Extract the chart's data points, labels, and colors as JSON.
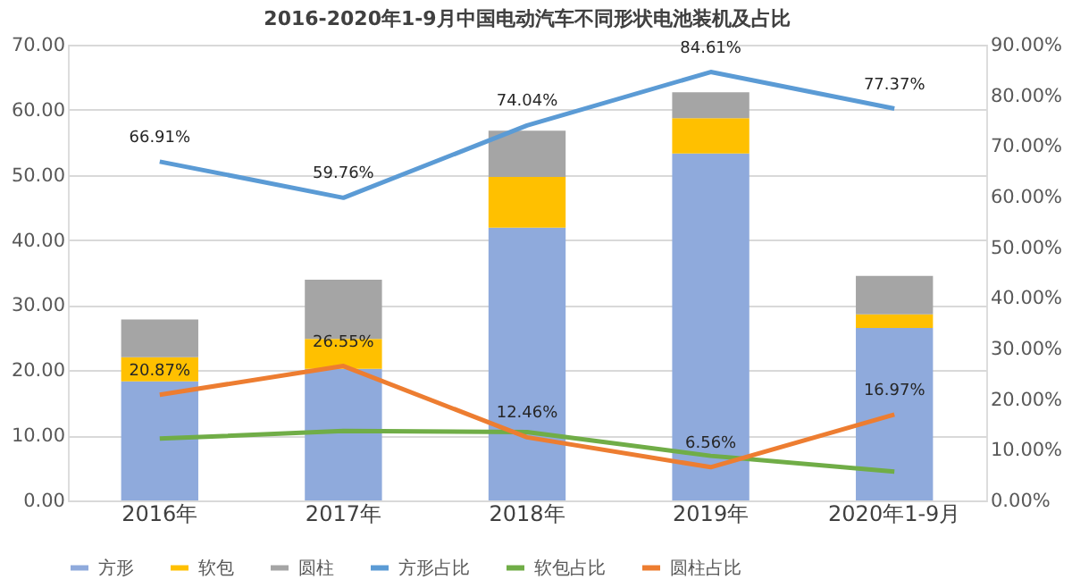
{
  "chart_data": {
    "type": "bar",
    "stacked": true,
    "title": "2016-2020年1-9月中国电动汽车不同形状电池装机及占比",
    "categories": [
      "2016年",
      "2017年",
      "2018年",
      "2019年",
      "2020年1-9月"
    ],
    "series": [
      {
        "name": "方形",
        "color": "#8faadc",
        "values": [
          18.3,
          20.2,
          41.9,
          53.3,
          26.5
        ]
      },
      {
        "name": "软包",
        "color": "#ffc000",
        "values": [
          3.7,
          4.6,
          7.8,
          5.4,
          2.1
        ]
      },
      {
        "name": "圆柱",
        "color": "#a5a5a5",
        "values": [
          5.8,
          9.1,
          7.1,
          4.0,
          5.9
        ]
      },
      {
        "name": "方形占比",
        "type": "line",
        "axis": "y2",
        "color": "#5b9bd5",
        "values": [
          66.91,
          59.76,
          74.04,
          84.61,
          77.37
        ],
        "value_labels": [
          "66.91%",
          "59.76%",
          "74.04%",
          "84.61%",
          "77.37%"
        ]
      },
      {
        "name": "软包占比",
        "type": "line",
        "axis": "y2",
        "color": "#70ad47",
        "values": [
          12.2,
          13.7,
          13.5,
          8.8,
          5.7
        ]
      },
      {
        "name": "圆柱占比",
        "type": "line",
        "axis": "y2",
        "color": "#ed7d31",
        "values": [
          20.87,
          26.55,
          12.46,
          6.56,
          16.97
        ],
        "value_labels": [
          "20.87%",
          "26.55%",
          "12.46%",
          "6.56%",
          "16.97%"
        ]
      }
    ],
    "ylim": [
      0,
      70
    ],
    "yticks": [
      {
        "value": 0,
        "label": "0.00"
      },
      {
        "value": 10,
        "label": "10.00"
      },
      {
        "value": 20,
        "label": "20.00"
      },
      {
        "value": 30,
        "label": "30.00"
      },
      {
        "value": 40,
        "label": "40.00"
      },
      {
        "value": 50,
        "label": "50.00"
      },
      {
        "value": 60,
        "label": "60.00"
      },
      {
        "value": 70,
        "label": "70.00"
      }
    ],
    "y2lim": [
      0,
      90
    ],
    "y2ticks": [
      {
        "value": 0,
        "label": "0.00%"
      },
      {
        "value": 10,
        "label": "10.00%"
      },
      {
        "value": 20,
        "label": "20.00%"
      },
      {
        "value": 30,
        "label": "30.00%"
      },
      {
        "value": 40,
        "label": "40.00%"
      },
      {
        "value": 50,
        "label": "50.00%"
      },
      {
        "value": 60,
        "label": "60.00%"
      },
      {
        "value": 70,
        "label": "70.00%"
      },
      {
        "value": 80,
        "label": "80.00%"
      },
      {
        "value": 90,
        "label": "90.00%"
      }
    ],
    "grid": "y",
    "legend": "bottom",
    "line_style": "solid",
    "marker": "none"
  }
}
